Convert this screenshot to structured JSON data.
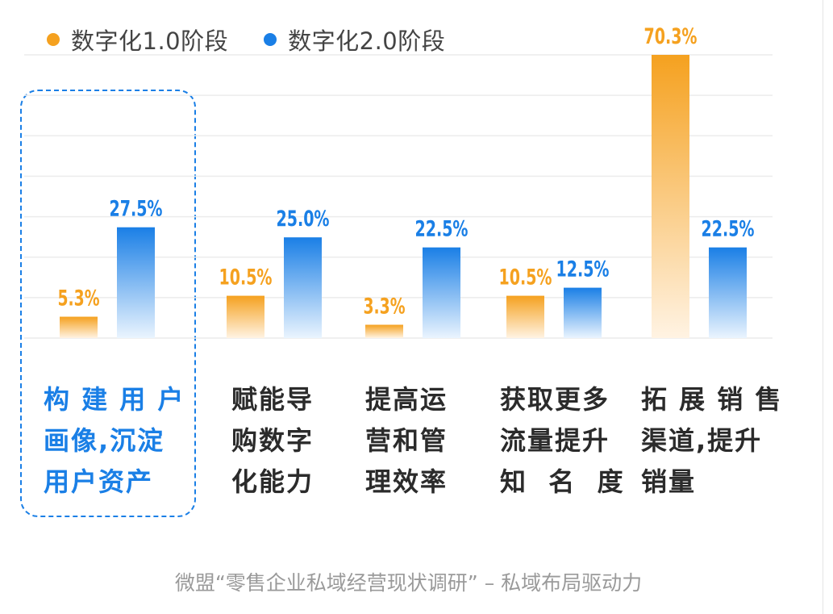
{
  "chart_data": {
    "type": "bar",
    "categories": [
      "构建用户画像,沉淀用户资产",
      "赋能导购数字化能力",
      "提高运营和管理效率",
      "获取更多流量提升知名度",
      "拓展销售渠道,提升销量"
    ],
    "category_lines": [
      [
        "构 建 用 户",
        "画像,沉淀",
        "用户资产"
      ],
      [
        "赋能导",
        "购数字",
        "化能力"
      ],
      [
        "提高运",
        "营和管",
        "理效率"
      ],
      [
        "获取更多",
        "流量提升",
        "知  名  度"
      ],
      [
        "拓 展 销 售",
        "渠道,提升",
        "销量"
      ]
    ],
    "series": [
      {
        "name": "数字化1.0阶段",
        "values": [
          5.3,
          10.5,
          3.3,
          10.5,
          70.3
        ],
        "labels": [
          "5.3%",
          "10.5%",
          "3.3%",
          "10.5%",
          "70.3%"
        ],
        "color": "#f5a11f",
        "color_light": "#fff3e3"
      },
      {
        "name": "数字化2.0阶段",
        "values": [
          27.5,
          25.0,
          22.5,
          12.5,
          22.5
        ],
        "labels": [
          "27.5%",
          "25.0%",
          "22.5%",
          "12.5%",
          "22.5%"
        ],
        "color": "#1a7fe6",
        "color_light": "#eaf4fe"
      }
    ],
    "ylim": [
      0,
      70.3
    ],
    "highlighted_category": 0,
    "title": "",
    "xlabel": "",
    "ylabel": ""
  },
  "legend": {
    "items": [
      {
        "label": "数字化1.0阶段",
        "color": "#f5a11f"
      },
      {
        "label": "数字化2.0阶段",
        "color": "#1a7fe6"
      }
    ]
  },
  "footer": {
    "text": "微盟“零售企业私域经营现状调研” – 私域布局驱动力"
  }
}
